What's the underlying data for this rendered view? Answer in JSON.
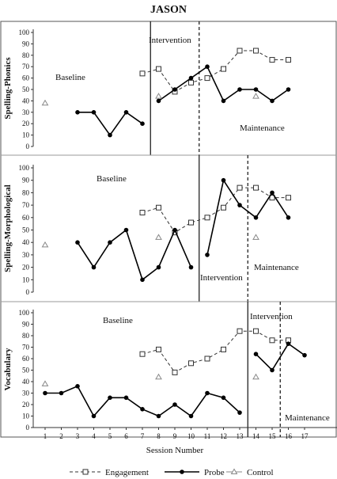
{
  "chart_data": {
    "type": "line",
    "title": "JASON",
    "xlabel": "Session Number",
    "x_ticks": [
      1,
      2,
      3,
      4,
      5,
      6,
      7,
      8,
      9,
      10,
      11,
      12,
      13,
      14,
      15,
      16,
      17
    ],
    "legend": [
      "Engagement",
      "Probe",
      "Control"
    ],
    "legend_position": "bottom",
    "colors": {
      "engagement": "#333333",
      "probe": "#000000",
      "control": "#888888"
    },
    "panels": [
      {
        "ylabel": "Spelling-Phonics",
        "ylim": [
          0,
          100
        ],
        "y_ticks": [
          0,
          10,
          20,
          30,
          40,
          50,
          60,
          70,
          80,
          90,
          100
        ],
        "phase_labels": [
          "Baseline",
          "Intervention",
          "Maintenance"
        ],
        "phase_change_after": [
          7.5,
          10.5
        ],
        "probe": [
          {
            "x": [
              3,
              4,
              5,
              6,
              7
            ],
            "y": [
              30,
              30,
              10,
              30,
              20
            ]
          },
          {
            "x": [
              8,
              9,
              10,
              11,
              12,
              13,
              14,
              15,
              16
            ],
            "y": [
              40,
              50,
              60,
              70,
              40,
              50,
              50,
              40,
              50
            ]
          }
        ],
        "engagement": [
          {
            "x": [
              7,
              8,
              9,
              10,
              11,
              12,
              13,
              14,
              15,
              16
            ],
            "y": [
              64,
              68,
              48,
              56,
              60,
              68,
              84,
              84,
              76,
              76
            ]
          }
        ],
        "control": [
          {
            "x": [
              1,
              8,
              14
            ],
            "y": [
              38,
              44,
              44
            ]
          }
        ]
      },
      {
        "ylabel": "Spelling-Morphological",
        "ylim": [
          0,
          100
        ],
        "y_ticks": [
          0,
          10,
          20,
          30,
          40,
          50,
          60,
          70,
          80,
          90,
          100
        ],
        "phase_labels": [
          "Baseline",
          "Intervention",
          "Maintenance"
        ],
        "phase_change_after": [
          10.5,
          13.5
        ],
        "probe": [
          {
            "x": [
              3,
              4,
              5,
              6,
              7,
              8,
              9,
              10
            ],
            "y": [
              40,
              20,
              40,
              50,
              10,
              20,
              50,
              20
            ]
          },
          {
            "x": [
              11,
              12,
              13,
              14,
              15,
              16
            ],
            "y": [
              30,
              90,
              70,
              60,
              80,
              60
            ]
          }
        ],
        "engagement": [
          {
            "x": [
              7,
              8,
              9,
              10,
              11,
              12,
              13,
              14,
              15,
              16
            ],
            "y": [
              64,
              68,
              48,
              56,
              60,
              68,
              84,
              84,
              76,
              76
            ]
          }
        ],
        "control": [
          {
            "x": [
              1,
              8,
              14
            ],
            "y": [
              38,
              44,
              44
            ]
          }
        ]
      },
      {
        "ylabel": "Vocabulary",
        "ylim": [
          0,
          100
        ],
        "y_ticks": [
          0,
          10,
          20,
          30,
          40,
          50,
          60,
          70,
          80,
          90,
          100
        ],
        "phase_labels": [
          "Baseline",
          "Intervention",
          "Maintenance"
        ],
        "phase_change_after": [
          13.5,
          15.5
        ],
        "probe": [
          {
            "x": [
              1,
              2,
              3,
              4,
              5,
              6,
              7,
              8,
              9,
              10,
              11,
              12,
              13
            ],
            "y": [
              30,
              30,
              36,
              10,
              26,
              26,
              16,
              10,
              20,
              10,
              30,
              26,
              13
            ]
          },
          {
            "x": [
              14,
              15,
              16,
              17
            ],
            "y": [
              64,
              50,
              73,
              63
            ]
          }
        ],
        "engagement": [
          {
            "x": [
              7,
              8,
              9,
              10,
              11,
              12,
              13,
              14,
              15,
              16
            ],
            "y": [
              64,
              68,
              48,
              56,
              60,
              68,
              84,
              84,
              76,
              76
            ]
          }
        ],
        "control": [
          {
            "x": [
              1,
              8,
              14
            ],
            "y": [
              38,
              44,
              44
            ]
          }
        ]
      }
    ]
  }
}
